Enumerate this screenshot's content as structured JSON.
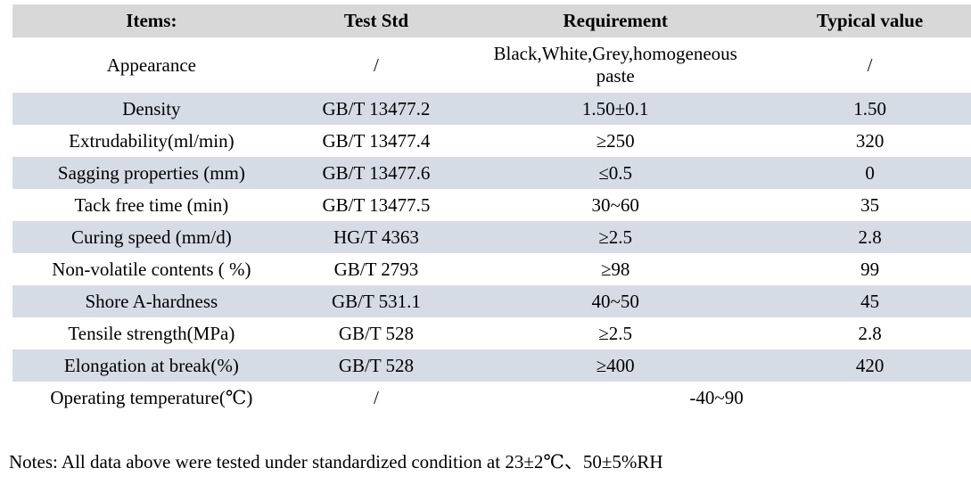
{
  "table": {
    "headers": [
      "Items:",
      "Test Std",
      "Requirement",
      "Typical value"
    ],
    "rows": [
      {
        "item": "Appearance",
        "std": "/",
        "req": "Black,White,Grey,homogeneous\npaste",
        "typ": "/"
      },
      {
        "item": "Density",
        "std": "GB/T 13477.2",
        "req": "1.50±0.1",
        "typ": "1.50"
      },
      {
        "item": "Extrudability(ml/min)",
        "std": "GB/T 13477.4",
        "req": "≥250",
        "typ": "320"
      },
      {
        "item": "Sagging properties (mm)",
        "std": "GB/T 13477.6",
        "req": "≤0.5",
        "typ": "0"
      },
      {
        "item": "Tack free time (min)",
        "std": "GB/T 13477.5",
        "req": "30~60",
        "typ": "35"
      },
      {
        "item": "Curing speed (mm/d)",
        "std": "HG/T 4363",
        "req": "≥2.5",
        "typ": "2.8"
      },
      {
        "item": "Non-volatile contents ( %)",
        "std": "GB/T 2793",
        "req": "≥98",
        "typ": "99"
      },
      {
        "item": "Shore A-hardness",
        "std": "GB/T 531.1",
        "req": "40~50",
        "typ": "45"
      },
      {
        "item": "Tensile strength(MPa)",
        "std": "GB/T 528",
        "req": "≥2.5",
        "typ": "2.8"
      },
      {
        "item": "Elongation at break(%)",
        "std": "GB/T 528",
        "req": "≥400",
        "typ": "420"
      },
      {
        "item": "Operating temperature(℃)",
        "std": "/",
        "req": "-40~90"
      }
    ]
  },
  "notes": "Notes: All data above were tested under standardized condition at 23±2℃、50±5%RH",
  "colors": {
    "header_bg": "#d8d8d8",
    "stripe_bg": "#d6dce6",
    "text": "#000000",
    "page_bg": "#ffffff"
  }
}
